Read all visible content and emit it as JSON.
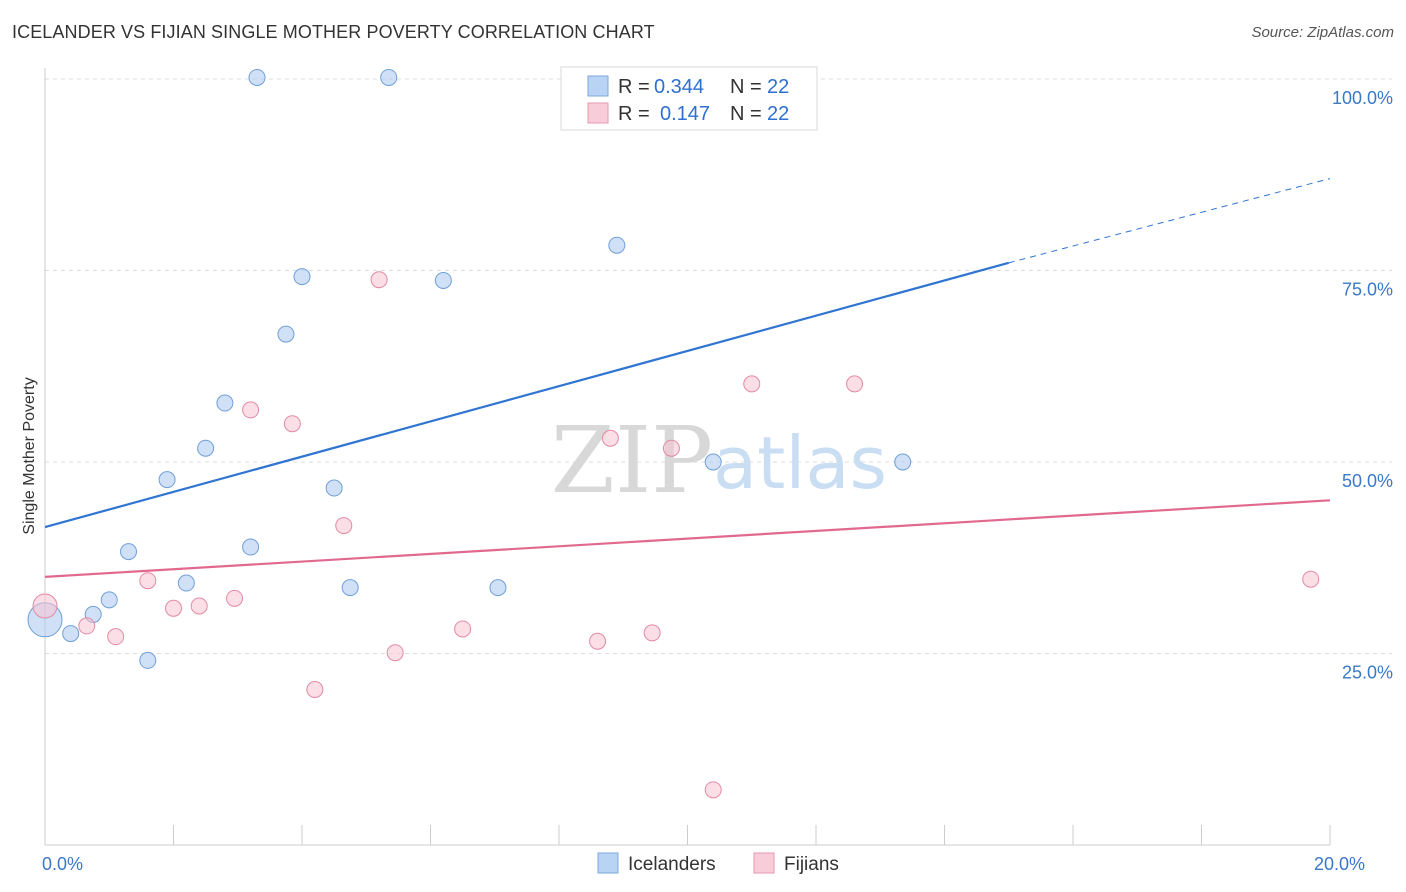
{
  "title": "ICELANDER VS FIJIAN SINGLE MOTHER POVERTY CORRELATION CHART",
  "source": "Source: ZipAtlas.com",
  "watermark": {
    "zip": "ZIP",
    "atlas": "atlas"
  },
  "chart_data": {
    "type": "scatter",
    "title": "ICELANDER VS FIJIAN SINGLE MOTHER POVERTY CORRELATION CHART",
    "xlabel": "",
    "ylabel": "Single Mother Poverty",
    "xlim": [
      0,
      20
    ],
    "ylim": [
      0,
      100
    ],
    "x_tick_labels": [
      {
        "value": 0,
        "label": "0.0%"
      },
      {
        "value": 20,
        "label": "20.0%"
      }
    ],
    "y_tick_labels": [
      {
        "value": 25,
        "label": "25.0%"
      },
      {
        "value": 50,
        "label": "50.0%"
      },
      {
        "value": 75,
        "label": "75.0%"
      },
      {
        "value": 100,
        "label": "100.0%"
      }
    ],
    "grid": true,
    "legend_position": "top-center",
    "series": [
      {
        "name": "Icelanders",
        "color": "#a9c9f0",
        "edge_color": "#6f9fd8",
        "line_color": "#2f75d1",
        "R": "0.344",
        "N": "22",
        "trend": {
          "x0": 0,
          "y0": 41.5,
          "x1": 15,
          "y1": 76.0,
          "dash_x1": 20,
          "dash_y1": 87.0
        },
        "points": [
          {
            "x": 3.3,
            "y": 100.2
          },
          {
            "x": 5.35,
            "y": 100.2
          },
          {
            "x": 8.9,
            "y": 78.3
          },
          {
            "x": 4.0,
            "y": 74.2
          },
          {
            "x": 6.2,
            "y": 73.7
          },
          {
            "x": 3.75,
            "y": 66.7
          },
          {
            "x": 2.8,
            "y": 57.7
          },
          {
            "x": 2.5,
            "y": 51.8
          },
          {
            "x": 10.4,
            "y": 50.0
          },
          {
            "x": 13.35,
            "y": 50.0
          },
          {
            "x": 1.9,
            "y": 47.7
          },
          {
            "x": 4.5,
            "y": 46.6
          },
          {
            "x": 3.2,
            "y": 38.9
          },
          {
            "x": 1.3,
            "y": 38.3
          },
          {
            "x": 2.2,
            "y": 34.2
          },
          {
            "x": 4.75,
            "y": 33.6
          },
          {
            "x": 7.05,
            "y": 33.6
          },
          {
            "x": 1.0,
            "y": 32.0
          },
          {
            "x": 0.75,
            "y": 30.1
          },
          {
            "x": 0.0,
            "y": 29.4,
            "size": "large"
          },
          {
            "x": 0.4,
            "y": 27.6
          },
          {
            "x": 1.6,
            "y": 24.1
          }
        ]
      },
      {
        "name": "Fijians",
        "color": "#f7c2d1",
        "edge_color": "#e48aa6",
        "line_color": "#e2698e",
        "R": "0.147",
        "N": "22",
        "trend": {
          "x0": 0,
          "y0": 35.0,
          "x1": 20,
          "y1": 45.0
        },
        "points": [
          {
            "x": 5.2,
            "y": 73.8
          },
          {
            "x": 11.0,
            "y": 60.2
          },
          {
            "x": 12.6,
            "y": 60.2
          },
          {
            "x": 3.2,
            "y": 56.8
          },
          {
            "x": 3.85,
            "y": 55.0
          },
          {
            "x": 8.8,
            "y": 53.1
          },
          {
            "x": 9.75,
            "y": 51.8
          },
          {
            "x": 4.65,
            "y": 41.7
          },
          {
            "x": 19.7,
            "y": 34.7
          },
          {
            "x": 1.6,
            "y": 34.5
          },
          {
            "x": 2.95,
            "y": 32.2
          },
          {
            "x": 2.4,
            "y": 31.2
          },
          {
            "x": 2.0,
            "y": 30.9
          },
          {
            "x": 0.0,
            "y": 31.2,
            "size": "medium"
          },
          {
            "x": 0.65,
            "y": 28.6
          },
          {
            "x": 6.5,
            "y": 28.2
          },
          {
            "x": 9.45,
            "y": 27.7
          },
          {
            "x": 1.1,
            "y": 27.2
          },
          {
            "x": 8.6,
            "y": 26.6
          },
          {
            "x": 5.45,
            "y": 25.1
          },
          {
            "x": 4.2,
            "y": 20.3
          },
          {
            "x": 10.4,
            "y": 7.2
          }
        ]
      }
    ]
  },
  "legend": {
    "r_label": "R =",
    "n_label": "N =",
    "rows": [
      {
        "r": "0.344",
        "n": "22"
      },
      {
        "r": "0.147",
        "n": "22"
      }
    ]
  },
  "bottom_legend": [
    "Icelanders",
    "Fijians"
  ]
}
